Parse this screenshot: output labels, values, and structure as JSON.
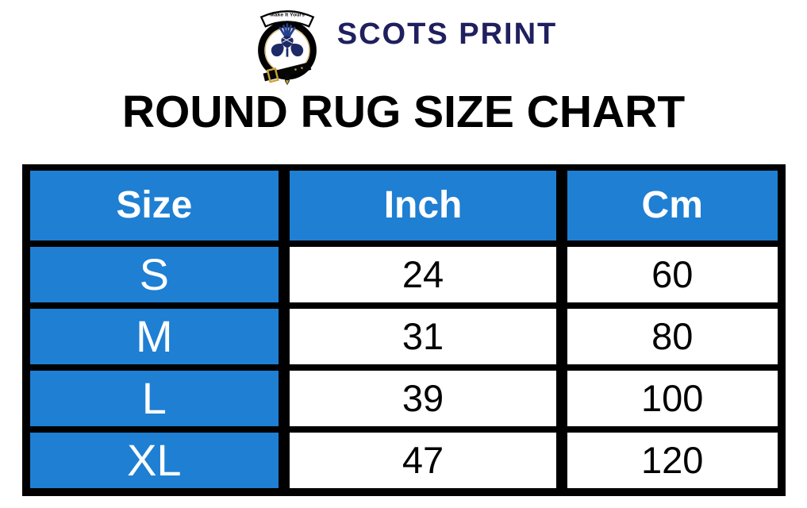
{
  "brand": {
    "name": "SCOTS PRINT",
    "tagline": "Make It Yours"
  },
  "title": "ROUND RUG SIZE CHART",
  "chart_data": {
    "type": "table",
    "title": "ROUND RUG SIZE CHART",
    "columns": [
      "Size",
      "Inch",
      "Cm"
    ],
    "rows": [
      [
        "S",
        "24",
        "60"
      ],
      [
        "M",
        "31",
        "80"
      ],
      [
        "L",
        "39",
        "100"
      ],
      [
        "XL",
        "47",
        "120"
      ]
    ]
  },
  "colors": {
    "header_bg": "#1e7fd3",
    "header_text": "#ffffff",
    "cell_bg": "#ffffff",
    "cell_text": "#000000",
    "border": "#000000",
    "brand_navy": "#20205f",
    "crest_gold": "#c9a33a",
    "thistle_blue": "#24408f",
    "thistle_navy": "#1c2a66"
  }
}
